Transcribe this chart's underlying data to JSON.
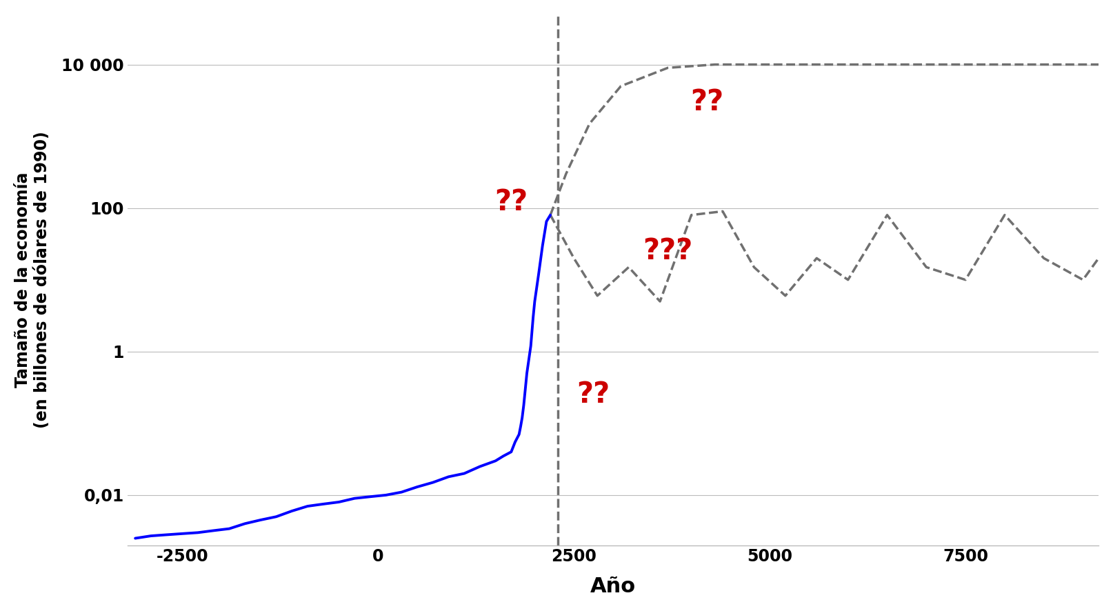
{
  "title": "",
  "xlabel": "Año",
  "ylabel_line1": "Tamaño de la economía",
  "ylabel_line2": "(en billones de dólares de 1990)",
  "bg_color": "#ffffff",
  "blue_line_color": "#0000ff",
  "dashed_color": "#707070",
  "question_color": "#cc0000",
  "xlim": [
    -3200,
    9200
  ],
  "ylim_log": [
    0.002,
    50000
  ],
  "yticks": [
    0.01,
    1,
    100,
    10000
  ],
  "ytick_labels": [
    "0,01",
    "1",
    "100",
    "10 000"
  ],
  "xticks": [
    -2500,
    0,
    2500,
    5000,
    7500
  ],
  "blue_x": [
    -3100,
    -2900,
    -2700,
    -2500,
    -2300,
    -2100,
    -1900,
    -1700,
    -1500,
    -1300,
    -1100,
    -900,
    -700,
    -500,
    -300,
    -100,
    100,
    300,
    500,
    700,
    900,
    1100,
    1300,
    1500,
    1600,
    1700,
    1750,
    1800,
    1820,
    1840,
    1860,
    1880,
    1900,
    1950,
    1980,
    2000,
    2050,
    2100,
    2150,
    2200
  ],
  "blue_y": [
    0.0025,
    0.0027,
    0.0028,
    0.0029,
    0.003,
    0.0032,
    0.0034,
    0.004,
    0.0045,
    0.005,
    0.006,
    0.007,
    0.0075,
    0.008,
    0.009,
    0.0095,
    0.01,
    0.011,
    0.013,
    0.015,
    0.018,
    0.02,
    0.025,
    0.03,
    0.035,
    0.04,
    0.055,
    0.07,
    0.09,
    0.12,
    0.18,
    0.3,
    0.5,
    1.2,
    3.0,
    5.0,
    12.0,
    30.0,
    65.0,
    80.0
  ],
  "vline_x": 2300,
  "dashed_upper_x": [
    2200,
    2400,
    2700,
    3100,
    3700,
    4300,
    4800,
    5300,
    6000,
    6800,
    7500,
    8000,
    8500,
    9000,
    9200
  ],
  "dashed_upper_y": [
    80,
    300,
    1500,
    5000,
    9000,
    10000,
    10000,
    10000,
    10000,
    10000,
    10000,
    10000,
    10000,
    10000,
    10000
  ],
  "dashed_lower_x": [
    2200,
    2500,
    2800,
    3200,
    3600,
    4000,
    4400,
    4800,
    5200,
    5600,
    6000,
    6500,
    7000,
    7500,
    8000,
    8500,
    9000,
    9200
  ],
  "dashed_lower_y": [
    80,
    20,
    6,
    15,
    5,
    80,
    90,
    15,
    6,
    20,
    10,
    80,
    15,
    10,
    80,
    20,
    10,
    20
  ],
  "qq1_x": 1700,
  "qq1_y": 120,
  "qq2_x": 4200,
  "qq2_y": 3000,
  "qq3_x": 2750,
  "qq3_y": 0.25,
  "qqq_x": 3700,
  "qqq_y": 25
}
